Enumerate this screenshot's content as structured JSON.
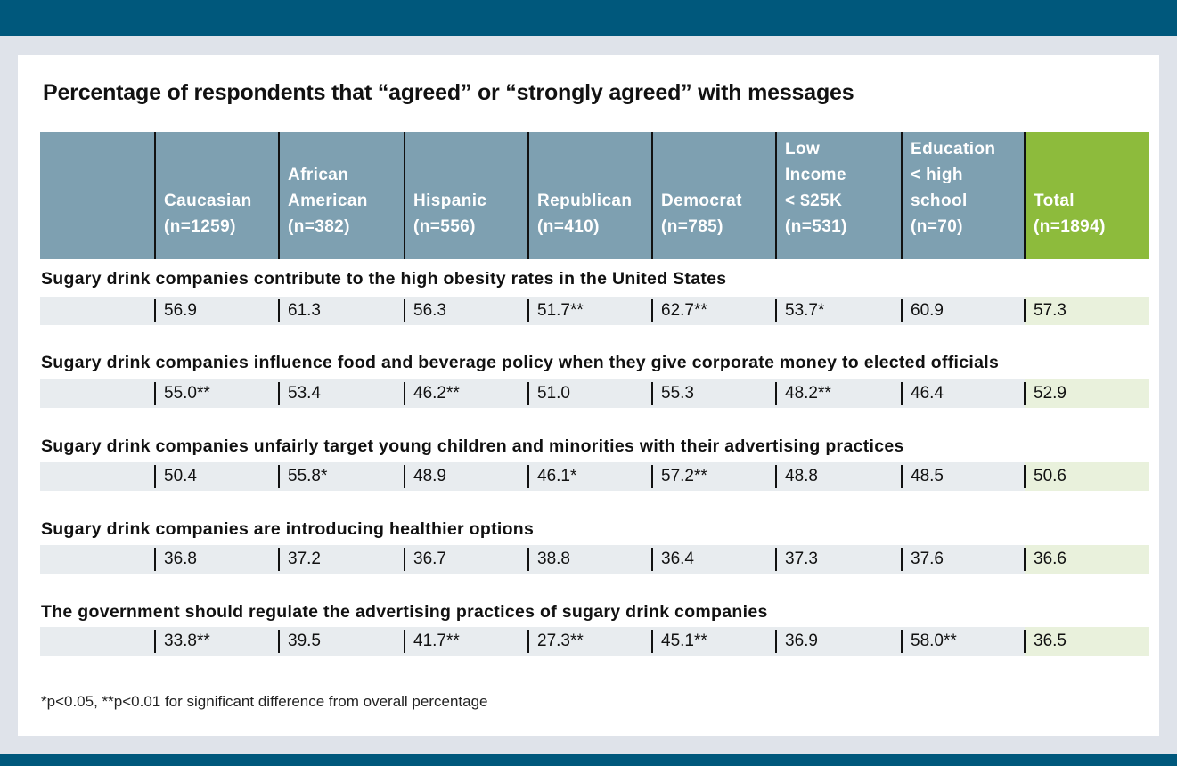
{
  "title": "Percentage of respondents that “agreed” or “strongly agreed” with messages",
  "columns": [
    "",
    "Caucasian\n(n=1259)",
    "African\nAmerican\n(n=382)",
    "Hispanic\n(n=556)",
    "Republican\n(n=410)",
    "Democrat\n(n=785)",
    "Low\nIncome\n< $25K\n(n=531)",
    "Education\n< high\nschool\n(n=70)",
    "Total\n(n=1894)"
  ],
  "rows": [
    {
      "label": "Sugary drink companies contribute to the high obesity rates in the United States",
      "values": [
        "56.9",
        "61.3",
        "56.3",
        "51.7**",
        "62.7**",
        "53.7*",
        "60.9",
        "57.3"
      ]
    },
    {
      "label": "Sugary drink companies influence food and beverage policy when they give corporate money to elected officials",
      "values": [
        "55.0**",
        "53.4",
        "46.2**",
        "51.0",
        "55.3",
        "48.2**",
        "46.4",
        "52.9"
      ]
    },
    {
      "label": "Sugary drink companies unfairly target young children and minorities with their advertising practices",
      "values": [
        "50.4",
        "55.8*",
        "48.9",
        "46.1*",
        "57.2**",
        "48.8",
        "48.5",
        "50.6"
      ]
    },
    {
      "label": "Sugary drink companies are introducing healthier options",
      "values": [
        "36.8",
        "37.2",
        "36.7",
        "38.8",
        "36.4",
        "37.3",
        "37.6",
        "36.6"
      ]
    },
    {
      "label": "The government should regulate the advertising practices of sugary drink companies",
      "values": [
        "33.8**",
        "39.5",
        "41.7**",
        "27.3**",
        "45.1**",
        "36.9",
        "58.0**",
        "36.5"
      ]
    }
  ],
  "footnote": "*p<0.05, **p<0.01 for significant difference from overall percentage",
  "colors": {
    "header_bar": "#00587c",
    "header_cell": "#7ea0b1",
    "total_header": "#8dbb3c",
    "row_fill": "#e8ecef",
    "total_row_fill": "#e9f1dc"
  }
}
